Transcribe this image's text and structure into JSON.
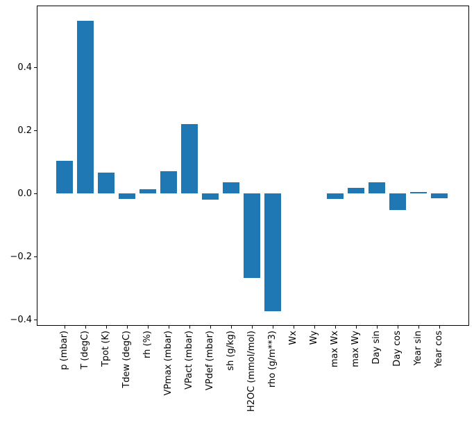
{
  "figure": {
    "background": "#ffffff",
    "axis_color": "#000000",
    "text_color": "#000000"
  },
  "chart_data": {
    "type": "bar",
    "title": "",
    "xlabel": "",
    "ylabel": "",
    "bar_color": "#1f77b4",
    "grid": false,
    "legend": false,
    "ylim": [
      -0.42,
      0.596
    ],
    "categories": [
      "p (mbar)",
      "T (degC)",
      "Tpot (K)",
      "Tdew (degC)",
      "rh (%)",
      "VPmax (mbar)",
      "VPact (mbar)",
      "VPdef (mbar)",
      "sh (g/kg)",
      "H2OC (mmol/mol)",
      "rho (g/m**3)",
      "Wx",
      "Wy",
      "max Wx",
      "max Wy",
      "Day sin",
      "Day cos",
      "Year sin",
      "Year cos"
    ],
    "values": [
      0.103,
      0.547,
      0.067,
      -0.018,
      0.014,
      0.07,
      0.219,
      -0.019,
      0.036,
      -0.268,
      -0.374,
      0.0,
      0.0,
      -0.017,
      0.017,
      0.035,
      -0.053,
      0.004,
      -0.015
    ],
    "yticks": [
      {
        "value": 0.4,
        "label": "0.4"
      },
      {
        "value": 0.2,
        "label": "0.2"
      },
      {
        "value": 0.0,
        "label": "0.0"
      },
      {
        "value": -0.2,
        "label": "−0.2"
      },
      {
        "value": -0.4,
        "label": "−0.4"
      }
    ]
  }
}
